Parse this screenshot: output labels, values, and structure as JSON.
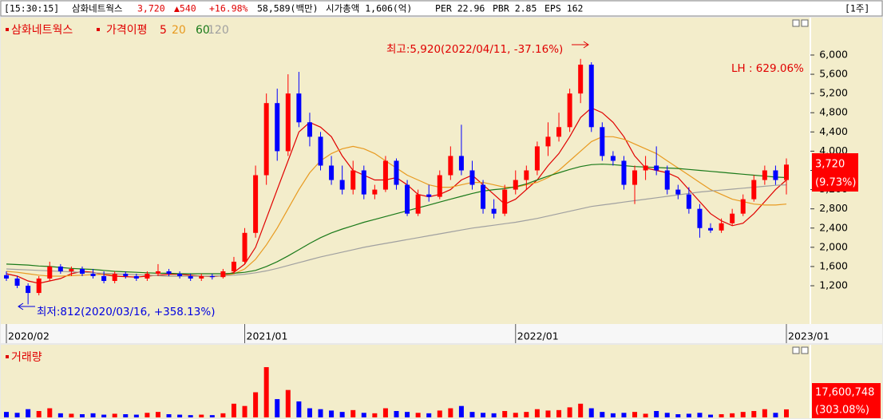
{
  "header": {
    "time": "[15:30:15]",
    "name": "삼화네트웍스",
    "price": "3,720",
    "change": "▲540",
    "change_rate": "+16.98%",
    "trade_value": "58,589(백만)",
    "market_cap": "시가총액 1,606(억)",
    "per": "PER 22.96",
    "pbr": "PBR 2.85",
    "eps": "EPS 162",
    "period": "[1주]"
  },
  "chart_data": [
    {
      "type": "candlestick",
      "title": "삼화네트웍스",
      "ma_label": "가격이평",
      "up_color": "#ff0000",
      "down_color": "#0000ff",
      "categories": [
        "2020/02",
        null,
        null,
        null,
        null,
        null,
        null,
        null,
        null,
        null,
        null,
        null,
        null,
        null,
        null,
        null,
        null,
        null,
        null,
        null,
        null,
        null,
        "2021/01",
        null,
        null,
        null,
        null,
        null,
        null,
        null,
        null,
        null,
        null,
        null,
        null,
        null,
        null,
        null,
        null,
        null,
        null,
        null,
        null,
        null,
        null,
        null,
        null,
        "2022/01",
        null,
        null,
        null,
        null,
        null,
        null,
        null,
        null,
        null,
        null,
        null,
        null,
        null,
        null,
        null,
        null,
        null,
        null,
        null,
        null,
        null,
        null,
        null,
        null,
        "2023/01"
      ],
      "open": [
        1420,
        1350,
        1200,
        1050,
        1350,
        1600,
        1500,
        1550,
        1450,
        1400,
        1300,
        1450,
        1400,
        1350,
        1450,
        1500,
        1450,
        1400,
        1350,
        1400,
        1380,
        1500,
        1700,
        2300,
        3500,
        5000,
        4000,
        5200,
        4600,
        4300,
        3700,
        3400,
        3200,
        3600,
        3100,
        3200,
        3800,
        3300,
        2700,
        3100,
        3050,
        3500,
        3900,
        3600,
        3300,
        2800,
        2700,
        3200,
        3400,
        3600,
        4100,
        4300,
        4500,
        5200,
        5800,
        4500,
        3900,
        3800,
        3300,
        3600,
        3700,
        3600,
        3200,
        3100,
        2800,
        2400,
        2350,
        2500,
        2700,
        3000,
        3400,
        3600,
        3400
      ],
      "high": [
        1500,
        1400,
        1250,
        1400,
        1700,
        1650,
        1600,
        1600,
        1550,
        1500,
        1500,
        1500,
        1450,
        1500,
        1650,
        1550,
        1500,
        1450,
        1450,
        1450,
        1550,
        1800,
        2400,
        3700,
        5200,
        5300,
        5600,
        5650,
        4800,
        4400,
        3900,
        3700,
        3800,
        3700,
        3300,
        3900,
        3850,
        3400,
        3200,
        3300,
        3600,
        4100,
        4550,
        3800,
        3400,
        3000,
        3300,
        3600,
        3700,
        4200,
        4600,
        4800,
        5300,
        5920,
        5850,
        4600,
        4000,
        3900,
        3700,
        3900,
        4100,
        3700,
        3300,
        3250,
        2900,
        2500,
        2600,
        2800,
        3100,
        3500,
        3700,
        3700,
        3850
      ],
      "low": [
        1300,
        1150,
        812,
        1000,
        1300,
        1450,
        1400,
        1400,
        1350,
        1250,
        1250,
        1350,
        1300,
        1300,
        1400,
        1400,
        1350,
        1300,
        1300,
        1330,
        1350,
        1450,
        1650,
        2200,
        3300,
        3800,
        3900,
        4500,
        4100,
        3600,
        3300,
        3100,
        3100,
        3000,
        3000,
        3150,
        3200,
        2650,
        2650,
        2950,
        3000,
        3400,
        3500,
        3200,
        2700,
        2600,
        2650,
        3100,
        3200,
        3500,
        3900,
        4200,
        4400,
        5000,
        4400,
        3800,
        3700,
        3200,
        2900,
        3400,
        3500,
        3100,
        3000,
        2700,
        2200,
        2300,
        2300,
        2450,
        2650,
        2950,
        3300,
        3300,
        3100
      ],
      "close": [
        1350,
        1200,
        1050,
        1350,
        1600,
        1500,
        1550,
        1450,
        1400,
        1300,
        1450,
        1400,
        1350,
        1450,
        1500,
        1450,
        1400,
        1350,
        1400,
        1380,
        1500,
        1700,
        2300,
        3500,
        5000,
        4000,
        5200,
        4600,
        4300,
        3700,
        3400,
        3200,
        3600,
        3100,
        3200,
        3800,
        3300,
        2700,
        3100,
        3050,
        3500,
        3900,
        3600,
        3300,
        2800,
        2700,
        3200,
        3400,
        3600,
        4100,
        4300,
        4500,
        5200,
        5800,
        4500,
        3900,
        3800,
        3300,
        3600,
        3700,
        3600,
        3200,
        3100,
        2800,
        2400,
        2350,
        2500,
        2700,
        3000,
        3400,
        3600,
        3400,
        3720
      ],
      "series": [
        {
          "name": "5",
          "color": "#e00000",
          "values": [
            1450,
            1400,
            1300,
            1250,
            1300,
            1350,
            1450,
            1500,
            1480,
            1430,
            1400,
            1390,
            1380,
            1400,
            1420,
            1440,
            1440,
            1420,
            1400,
            1390,
            1410,
            1480,
            1650,
            2000,
            2600,
            3200,
            3800,
            4400,
            4600,
            4500,
            4300,
            3900,
            3600,
            3500,
            3400,
            3400,
            3450,
            3300,
            3100,
            3050,
            3100,
            3200,
            3400,
            3500,
            3300,
            3100,
            2900,
            3000,
            3200,
            3400,
            3700,
            3950,
            4300,
            4700,
            4900,
            4800,
            4600,
            4300,
            3900,
            3650,
            3600,
            3550,
            3450,
            3200,
            2950,
            2700,
            2550,
            2450,
            2500,
            2700,
            2950,
            3200,
            3400
          ]
        },
        {
          "name": "20",
          "color": "#e89a20",
          "values": [
            1500,
            1480,
            1450,
            1420,
            1400,
            1400,
            1410,
            1420,
            1430,
            1440,
            1440,
            1440,
            1430,
            1420,
            1410,
            1400,
            1400,
            1400,
            1400,
            1400,
            1410,
            1450,
            1550,
            1750,
            2050,
            2400,
            2800,
            3200,
            3550,
            3800,
            3950,
            4050,
            4100,
            4050,
            3950,
            3800,
            3650,
            3500,
            3400,
            3300,
            3250,
            3250,
            3300,
            3350,
            3350,
            3300,
            3250,
            3250,
            3300,
            3350,
            3450,
            3600,
            3800,
            4000,
            4200,
            4300,
            4300,
            4250,
            4150,
            4050,
            3950,
            3800,
            3650,
            3500,
            3350,
            3200,
            3100,
            3000,
            2950,
            2900,
            2880,
            2880,
            2900
          ]
        },
        {
          "name": "60",
          "color": "#1a7a1a",
          "values": [
            1650,
            1640,
            1630,
            1610,
            1600,
            1580,
            1560,
            1550,
            1540,
            1520,
            1500,
            1490,
            1480,
            1470,
            1460,
            1460,
            1450,
            1450,
            1450,
            1450,
            1450,
            1460,
            1480,
            1520,
            1600,
            1700,
            1820,
            1950,
            2080,
            2200,
            2300,
            2380,
            2450,
            2520,
            2580,
            2640,
            2700,
            2760,
            2820,
            2880,
            2940,
            3000,
            3060,
            3120,
            3170,
            3200,
            3220,
            3260,
            3320,
            3400,
            3480,
            3550,
            3620,
            3680,
            3720,
            3730,
            3720,
            3700,
            3680,
            3670,
            3660,
            3650,
            3640,
            3620,
            3600,
            3580,
            3560,
            3540,
            3520,
            3500,
            3480,
            3460,
            3450
          ]
        },
        {
          "name": "120",
          "color": "#a0a0a0",
          "values": [
            1550,
            1540,
            1530,
            1520,
            1510,
            1500,
            1490,
            1480,
            1470,
            1460,
            1450,
            1440,
            1430,
            1420,
            1410,
            1400,
            1400,
            1400,
            1400,
            1400,
            1410,
            1420,
            1440,
            1470,
            1510,
            1560,
            1620,
            1680,
            1740,
            1800,
            1850,
            1900,
            1950,
            2000,
            2040,
            2080,
            2120,
            2160,
            2200,
            2240,
            2280,
            2320,
            2360,
            2400,
            2430,
            2460,
            2490,
            2520,
            2560,
            2600,
            2650,
            2700,
            2750,
            2800,
            2850,
            2880,
            2910,
            2940,
            2970,
            3000,
            3030,
            3060,
            3090,
            3120,
            3150,
            3170,
            3190,
            3210,
            3230,
            3250,
            3270,
            3290,
            3300
          ]
        }
      ],
      "ylim": [
        420,
        6780
      ],
      "yticks": [
        {
          "value": 1200,
          "label": "1,200"
        },
        {
          "value": 1600,
          "label": "1,600"
        },
        {
          "value": 2000,
          "label": "2,000"
        },
        {
          "value": 2400,
          "label": "2,400"
        },
        {
          "value": 2800,
          "label": "2,800"
        },
        {
          "value": 3200,
          "label": "3,200"
        },
        {
          "value": 3600,
          "label": "3,600"
        },
        {
          "value": 4000,
          "label": "4,000"
        },
        {
          "value": 4400,
          "label": "4,400"
        },
        {
          "value": 4800,
          "label": "4,800"
        },
        {
          "value": 5200,
          "label": "5,200"
        },
        {
          "value": 5600,
          "label": "5,600"
        },
        {
          "value": 6000,
          "label": "6,000"
        }
      ],
      "annotations": {
        "high": "최고:5,920(2022/04/11, -37.16%)",
        "low": "최저:812(2020/03/16, +358.13%)",
        "lh": "LH : 629.06%"
      },
      "last_label": "3,720",
      "last_change": "(9.73%)"
    },
    {
      "type": "bar",
      "title": "거래량",
      "values": [
        12000000,
        10000000,
        18000000,
        14000000,
        20000000,
        9000000,
        8000000,
        7000000,
        9000000,
        6000000,
        8000000,
        7000000,
        6000000,
        10000000,
        12000000,
        7000000,
        6000000,
        5000000,
        6000000,
        5000000,
        9000000,
        30000000,
        25000000,
        55000000,
        110000000,
        40000000,
        60000000,
        35000000,
        20000000,
        18000000,
        15000000,
        12000000,
        16000000,
        10000000,
        9000000,
        20000000,
        14000000,
        12000000,
        10000000,
        9000000,
        15000000,
        20000000,
        25000000,
        12000000,
        10000000,
        9000000,
        14000000,
        10000000,
        12000000,
        18000000,
        15000000,
        16000000,
        22000000,
        30000000,
        20000000,
        12000000,
        9000000,
        10000000,
        12000000,
        8000000,
        14000000,
        10000000,
        7000000,
        8000000,
        10000000,
        6000000,
        7000000,
        9000000,
        12000000,
        14000000,
        18000000,
        10000000,
        17600748
      ],
      "ylim": [
        0,
        145000000
      ],
      "last_label": "17,600,748",
      "last_change": "(303.08%)"
    }
  ]
}
